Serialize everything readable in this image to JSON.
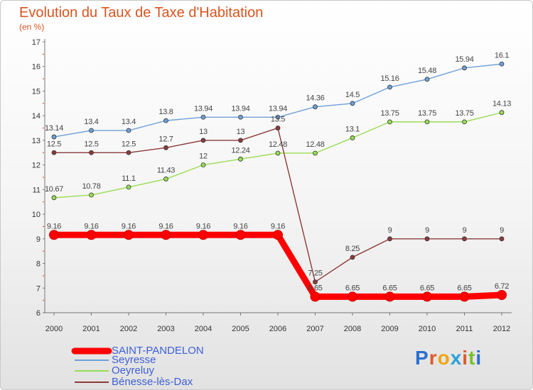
{
  "title": "Evolution du Taux de Taxe d'Habitation",
  "unit": "(en %)",
  "logo": "Proxiti",
  "chart_data": {
    "type": "line",
    "x": [
      2000,
      2001,
      2002,
      2003,
      2004,
      2005,
      2006,
      2007,
      2008,
      2009,
      2010,
      2011,
      2012
    ],
    "ylim": [
      6,
      17
    ],
    "yticks": [
      6,
      7,
      8,
      9,
      10,
      11,
      12,
      13,
      14,
      15,
      16,
      17
    ],
    "grid": false,
    "legend": "bottom-left",
    "series": [
      {
        "name": "SAINT-PANDELON",
        "color": "#ff0000",
        "values": [
          9.16,
          9.16,
          9.16,
          9.16,
          9.16,
          9.16,
          9.16,
          6.65,
          6.65,
          6.65,
          6.65,
          6.65,
          6.72
        ],
        "labels": [
          "9.16",
          "9.16",
          "9.16",
          "9.16",
          "9.16",
          "9.16",
          "9.16",
          "6.65",
          "6.65",
          "6.65",
          "6.65",
          "6.65",
          "6.72"
        ]
      },
      {
        "name": "Seyresse",
        "color": "#6fa0d8",
        "values": [
          13.14,
          13.4,
          13.4,
          13.8,
          13.94,
          13.94,
          13.94,
          14.36,
          14.5,
          15.16,
          15.48,
          15.94,
          16.1
        ],
        "labels": [
          "13.14",
          "13.4",
          "13.4",
          "13.8",
          "13.94",
          "13.94",
          "13.94",
          "14.36",
          "14.5",
          "15.16",
          "15.48",
          "15.94",
          "16.1"
        ]
      },
      {
        "name": "Oeyreluy",
        "color": "#99dd55",
        "values": [
          10.67,
          10.78,
          11.1,
          11.43,
          12,
          12.24,
          12.48,
          12.48,
          13.1,
          13.75,
          13.75,
          13.75,
          14.13
        ],
        "labels": [
          "10.67",
          "10.78",
          "11.1",
          "11.43",
          "12",
          "12.24",
          "12.48",
          "12.48",
          "13.1",
          "13.75",
          "13.75",
          "13.75",
          "14.13"
        ]
      },
      {
        "name": "Bénesse-lès-Dax",
        "color": "#8c3b3b",
        "values": [
          12.5,
          12.5,
          12.5,
          12.7,
          13,
          13,
          13.5,
          7.25,
          8.25,
          9,
          9,
          9,
          9
        ],
        "labels": [
          "12.5",
          "12.5",
          "12.5",
          "12.7",
          "13",
          "13",
          "13.5",
          "7.25",
          "8.25",
          "9",
          "9",
          "9",
          "9"
        ]
      }
    ]
  }
}
